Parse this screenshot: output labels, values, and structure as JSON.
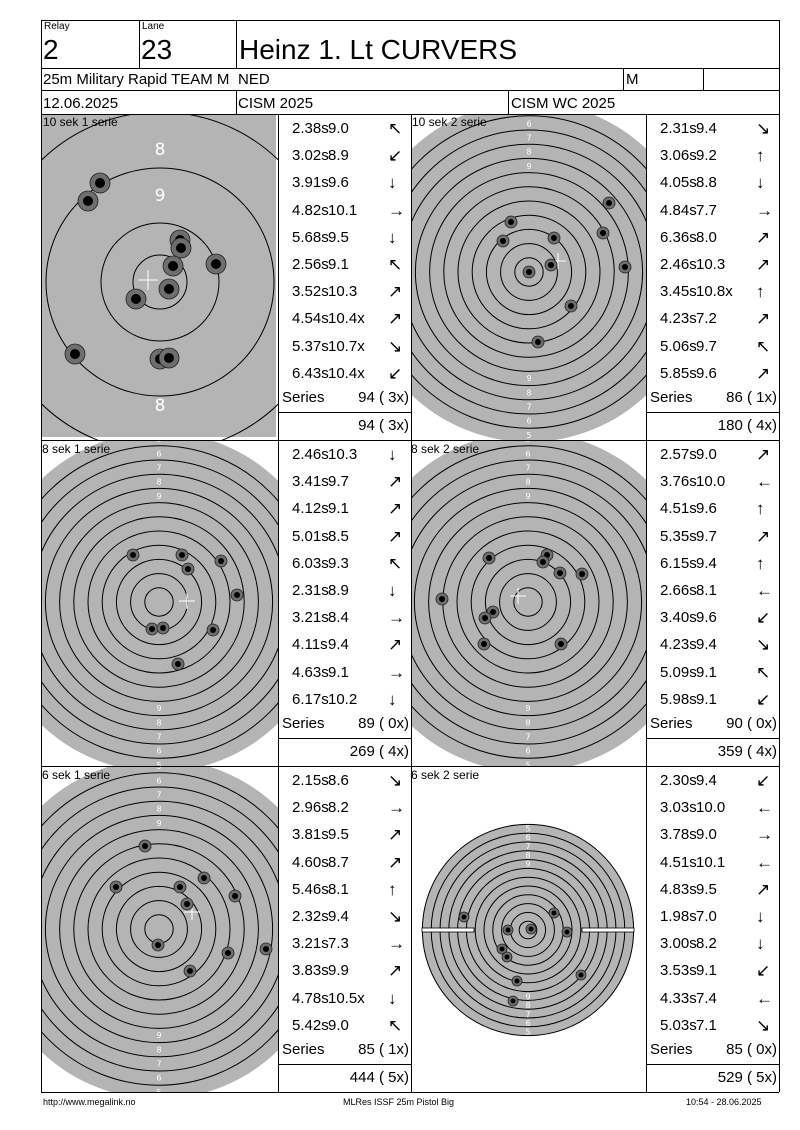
{
  "header": {
    "relay_label": "Relay",
    "relay": "2",
    "lane_label": "Lane",
    "lane": "23",
    "shooter": "Heinz 1. Lt CURVERS",
    "event": "25m Military Rapid TEAM M",
    "nation": "NED",
    "gender": "M",
    "date": "12.06.2025",
    "competition": "CISM 2025",
    "championship": "CISM WC 2025"
  },
  "series_label": "Series",
  "panels": [
    {
      "label": "10 sek 1 serie",
      "shots": [
        {
          "time": "2.38s",
          "score": "9.0",
          "arrow": "↖"
        },
        {
          "time": "3.02s",
          "score": "8.9",
          "arrow": "↙"
        },
        {
          "time": "3.91s",
          "score": "9.6",
          "arrow": "↓"
        },
        {
          "time": "4.82s",
          "score": "10.1",
          "arrow": "→"
        },
        {
          "time": "5.68s",
          "score": "9.5",
          "arrow": "↓"
        },
        {
          "time": "2.56s",
          "score": "9.1",
          "arrow": "↖"
        },
        {
          "time": "3.52s",
          "score": "10.3",
          "arrow": "↗"
        },
        {
          "time": "4.54s",
          "score": "10.4x",
          "arrow": "↗"
        },
        {
          "time": "5.37s",
          "score": "10.7x",
          "arrow": "↘"
        },
        {
          "time": "6.43s",
          "score": "10.4x",
          "arrow": "↙"
        }
      ],
      "series_total": "94 ( 3x)",
      "running_total": "94 ( 3x)"
    },
    {
      "label": "10 sek 2 serie",
      "shots": [
        {
          "time": "2.31s",
          "score": "9.4",
          "arrow": "↘"
        },
        {
          "time": "3.06s",
          "score": "9.2",
          "arrow": "↑"
        },
        {
          "time": "4.05s",
          "score": "8.8",
          "arrow": "↓"
        },
        {
          "time": "4.84s",
          "score": "7.7",
          "arrow": "→"
        },
        {
          "time": "6.36s",
          "score": "8.0",
          "arrow": "↗"
        },
        {
          "time": "2.46s",
          "score": "10.3",
          "arrow": "↗"
        },
        {
          "time": "3.45s",
          "score": "10.8x",
          "arrow": "↑"
        },
        {
          "time": "4.23s",
          "score": "7.2",
          "arrow": "↗"
        },
        {
          "time": "5.06s",
          "score": "9.7",
          "arrow": "↖"
        },
        {
          "time": "5.85s",
          "score": "9.6",
          "arrow": "↗"
        }
      ],
      "series_total": "86 ( 1x)",
      "running_total": "180 ( 4x)"
    },
    {
      "label": "8 sek 1 serie",
      "shots": [
        {
          "time": "2.46s",
          "score": "10.3",
          "arrow": "↓"
        },
        {
          "time": "3.41s",
          "score": "9.7",
          "arrow": "↗"
        },
        {
          "time": "4.12s",
          "score": "9.1",
          "arrow": "↗"
        },
        {
          "time": "5.01s",
          "score": "8.5",
          "arrow": "↗"
        },
        {
          "time": "6.03s",
          "score": "9.3",
          "arrow": "↖"
        },
        {
          "time": "2.31s",
          "score": "8.9",
          "arrow": "↓"
        },
        {
          "time": "3.21s",
          "score": "8.4",
          "arrow": "→"
        },
        {
          "time": "4.11s",
          "score": "9.4",
          "arrow": "↗"
        },
        {
          "time": "4.63s",
          "score": "9.1",
          "arrow": "→"
        },
        {
          "time": "6.17s",
          "score": "10.2",
          "arrow": "↓"
        }
      ],
      "series_total": "89 ( 0x)",
      "running_total": "269 ( 4x)"
    },
    {
      "label": "8 sek 2 serie",
      "shots": [
        {
          "time": "2.57s",
          "score": "9.0",
          "arrow": "↗"
        },
        {
          "time": "3.76s",
          "score": "10.0",
          "arrow": "←"
        },
        {
          "time": "4.51s",
          "score": "9.6",
          "arrow": "↑"
        },
        {
          "time": "5.35s",
          "score": "9.7",
          "arrow": "↗"
        },
        {
          "time": "6.15s",
          "score": "9.4",
          "arrow": "↑"
        },
        {
          "time": "2.66s",
          "score": "8.1",
          "arrow": "←"
        },
        {
          "time": "3.40s",
          "score": "9.6",
          "arrow": "↙"
        },
        {
          "time": "4.23s",
          "score": "9.4",
          "arrow": "↘"
        },
        {
          "time": "5.09s",
          "score": "9.1",
          "arrow": "↖"
        },
        {
          "time": "5.98s",
          "score": "9.1",
          "arrow": "↙"
        }
      ],
      "series_total": "90 ( 0x)",
      "running_total": "359 ( 4x)"
    },
    {
      "label": "6 sek 1 serie",
      "shots": [
        {
          "time": "2.15s",
          "score": "8.6",
          "arrow": "↘"
        },
        {
          "time": "2.96s",
          "score": "8.2",
          "arrow": "→"
        },
        {
          "time": "3.81s",
          "score": "9.5",
          "arrow": "↗"
        },
        {
          "time": "4.60s",
          "score": "8.7",
          "arrow": "↗"
        },
        {
          "time": "5.46s",
          "score": "8.1",
          "arrow": "↑"
        },
        {
          "time": "2.32s",
          "score": "9.4",
          "arrow": "↘"
        },
        {
          "time": "3.21s",
          "score": "7.3",
          "arrow": "→"
        },
        {
          "time": "3.83s",
          "score": "9.9",
          "arrow": "↗"
        },
        {
          "time": "4.78s",
          "score": "10.5x",
          "arrow": "↓"
        },
        {
          "time": "5.42s",
          "score": "9.0",
          "arrow": "↖"
        }
      ],
      "series_total": "85 ( 1x)",
      "running_total": "444 ( 5x)"
    },
    {
      "label": "6 sek 2 serie",
      "shots": [
        {
          "time": "2.30s",
          "score": "9.4",
          "arrow": "↙"
        },
        {
          "time": "3.03s",
          "score": "10.0",
          "arrow": "←"
        },
        {
          "time": "3.78s",
          "score": "9.0",
          "arrow": "→"
        },
        {
          "time": "4.51s",
          "score": "10.1",
          "arrow": "←"
        },
        {
          "time": "4.83s",
          "score": "9.5",
          "arrow": "↗"
        },
        {
          "time": "1.98s",
          "score": "7.0",
          "arrow": "↓"
        },
        {
          "time": "3.00s",
          "score": "8.2",
          "arrow": "↓"
        },
        {
          "time": "3.53s",
          "score": "9.1",
          "arrow": "↙"
        },
        {
          "time": "4.33s",
          "score": "7.4",
          "arrow": "←"
        },
        {
          "time": "5.03s",
          "score": "7.1",
          "arrow": "↘"
        }
      ],
      "series_total": "85 ( 0x)",
      "running_total": "529 ( 5x)"
    }
  ],
  "ring_labels_small": [
    "5",
    "6",
    "7",
    "8",
    "9"
  ],
  "ring_labels_panel1": [
    "8",
    "9",
    "8"
  ],
  "footer": {
    "url": "http://www.megalink.no",
    "program": "MLRes ISSF 25m Pistol Big",
    "timestamp": "10:54 - 28.06.2025"
  },
  "colors": {
    "target_grey": "#b4b4b4",
    "shot_fill": "#6e6e6e",
    "shot_core": "#000000"
  }
}
